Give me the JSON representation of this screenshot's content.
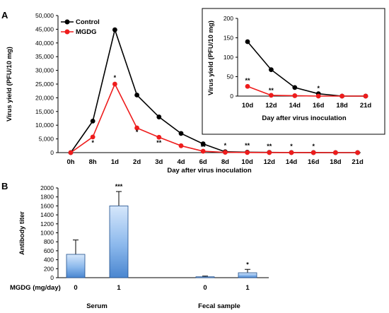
{
  "chart_data": [
    {
      "panel": "A",
      "type": "line",
      "ylabel": "Virus yield (PFU/10 mg)",
      "xlabel": "Day after virus inoculation",
      "categories": [
        "0h",
        "8h",
        "1d",
        "2d",
        "3d",
        "4d",
        "6d",
        "8d",
        "10d",
        "12d",
        "14d",
        "16d",
        "18d",
        "21d"
      ],
      "yticks": [
        "0",
        "5,000",
        "10,000",
        "15,000",
        "20,000",
        "25,000",
        "30,000",
        "35,000",
        "40,000",
        "45,000",
        "50,000"
      ],
      "ylim": [
        0,
        50000
      ],
      "legend_position": "top-left",
      "series": [
        {
          "name": "Control",
          "color": "#000000",
          "values": [
            0,
            11500,
            44800,
            21000,
            13000,
            7000,
            3200,
            300,
            150,
            80,
            30,
            20,
            0,
            0
          ]
        },
        {
          "name": "MGDG",
          "color": "#ee1c1c",
          "values": [
            0,
            5700,
            25000,
            9000,
            5600,
            2500,
            500,
            100,
            40,
            20,
            5,
            5,
            0,
            0
          ]
        }
      ],
      "annotations": [
        "*",
        "*",
        "*",
        "**",
        "**",
        "*",
        "**",
        "**",
        "*",
        "*"
      ]
    },
    {
      "panel": "inset",
      "type": "line",
      "ylabel": "Virus yield (PFU/10 mg)",
      "xlabel": "Day after virus inoculation",
      "categories": [
        "10d",
        "12d",
        "14d",
        "16d",
        "18d",
        "21d"
      ],
      "yticks": [
        "0",
        "50",
        "100",
        "150",
        "200"
      ],
      "ylim": [
        0,
        200
      ],
      "series": [
        {
          "name": "Control",
          "color": "#000000",
          "values": [
            140,
            68,
            22,
            6,
            0,
            0
          ]
        },
        {
          "name": "MGDG",
          "color": "#ee1c1c",
          "values": [
            25,
            2,
            1,
            0,
            0,
            0
          ]
        }
      ],
      "annotations": [
        "**",
        "**",
        "*",
        "*"
      ]
    },
    {
      "panel": "B",
      "type": "bar",
      "ylabel": "Antibody titer",
      "yticks": [
        "0",
        "200",
        "400",
        "600",
        "800",
        "1000",
        "1200",
        "1400",
        "1600",
        "1800",
        "2000"
      ],
      "ylim": [
        0,
        2000
      ],
      "row_label": "MGDG (mg/day)",
      "categories": [
        "0",
        "1",
        "0",
        "1"
      ],
      "groups": [
        "Serum",
        "Fecal sample"
      ],
      "values": [
        520,
        1600,
        20,
        110
      ],
      "errors": [
        320,
        320,
        15,
        75
      ],
      "annotations": [
        "***",
        "*"
      ]
    }
  ]
}
